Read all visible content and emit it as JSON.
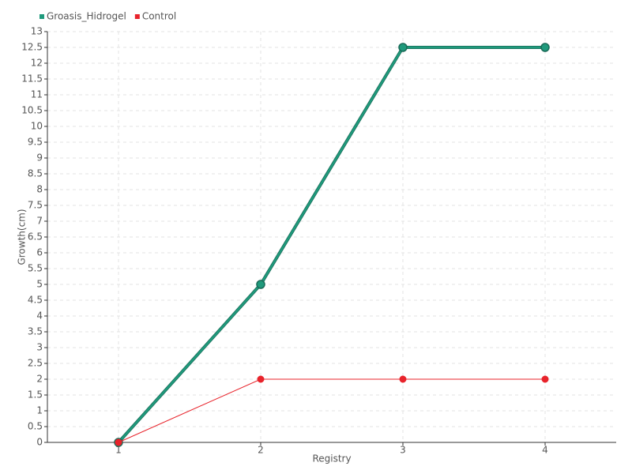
{
  "chart_data": {
    "type": "line",
    "categories": [
      "1",
      "2",
      "3",
      "4"
    ],
    "x_label": "Registry",
    "y_label": "Growth(cm)",
    "series": [
      {
        "name": "Groasis_Hidrogel",
        "color": "#1f9a7c",
        "values": [
          0,
          5,
          12.5,
          12.5
        ]
      },
      {
        "name": "Control",
        "color": "#e8232b",
        "values": [
          0,
          2,
          2,
          2
        ]
      }
    ],
    "ylim": [
      0,
      13
    ],
    "yticks": [
      0,
      0.5,
      1,
      1.5,
      2,
      2.5,
      3,
      3.5,
      4,
      4.5,
      5,
      5.5,
      6,
      6.5,
      7,
      7.5,
      8,
      8.5,
      9,
      9.5,
      10,
      10.5,
      11,
      11.5,
      12,
      12.5,
      13
    ],
    "grid": true,
    "legend": "top-left"
  }
}
